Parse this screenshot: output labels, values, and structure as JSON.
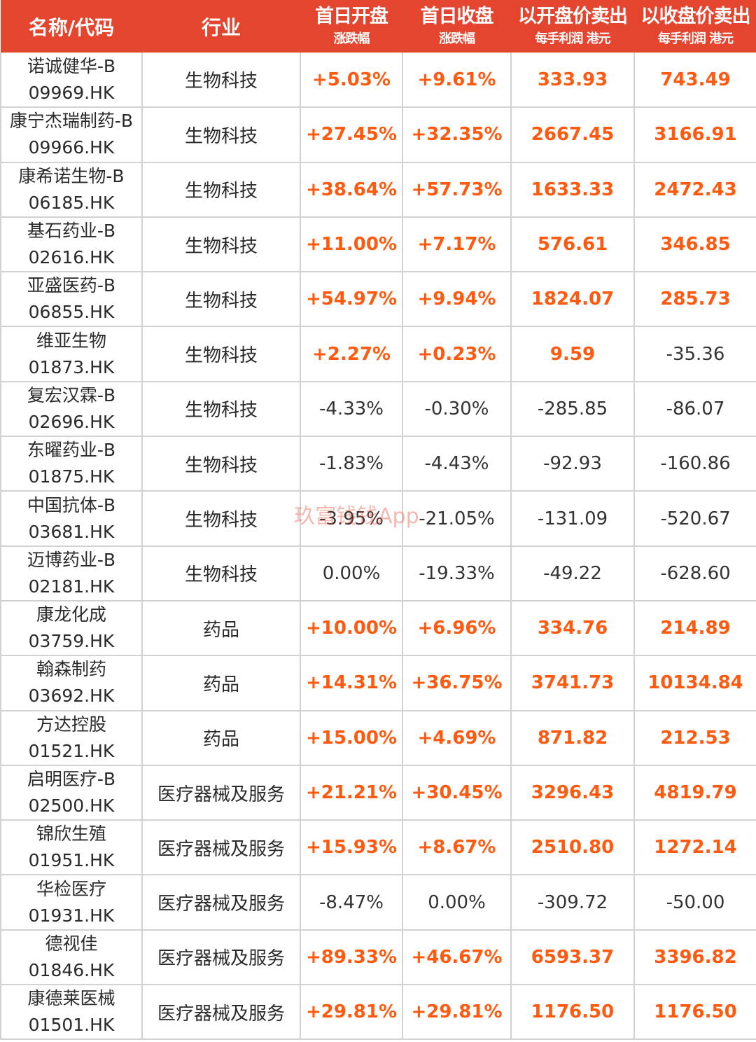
{
  "header": {
    "name_code": "名称/代码",
    "industry": "行业",
    "open": {
      "title": "首日开盘",
      "sub": "涨跌幅"
    },
    "close": {
      "title": "首日收盘",
      "sub": "涨跌幅"
    },
    "sell_open": {
      "title": "以开盘价卖出",
      "sub": "每手利润 港元"
    },
    "sell_close": {
      "title": "以收盘价卖出",
      "sub": "每手利润 港元"
    }
  },
  "watermark": "玖富钱钱App",
  "colors": {
    "header_bg": "#e3452f",
    "positive": "#ff5a10",
    "neutral": "#333333"
  },
  "rows": [
    {
      "name": "诺诚健华-B",
      "code": "09969.HK",
      "industry": "生物科技",
      "open_change": "+5.03%",
      "close_change": "+9.61%",
      "profit_open": "333.93",
      "profit_close": "743.49"
    },
    {
      "name": "康宁杰瑞制药-B",
      "code": "09966.HK",
      "industry": "生物科技",
      "open_change": "+27.45%",
      "close_change": "+32.35%",
      "profit_open": "2667.45",
      "profit_close": "3166.91"
    },
    {
      "name": "康希诺生物-B",
      "code": "06185.HK",
      "industry": "生物科技",
      "open_change": "+38.64%",
      "close_change": "+57.73%",
      "profit_open": "1633.33",
      "profit_close": "2472.43"
    },
    {
      "name": "基石药业-B",
      "code": "02616.HK",
      "industry": "生物科技",
      "open_change": "+11.00%",
      "close_change": "+7.17%",
      "profit_open": "576.61",
      "profit_close": "346.85"
    },
    {
      "name": "亚盛医药-B",
      "code": "06855.HK",
      "industry": "生物科技",
      "open_change": "+54.97%",
      "close_change": "+9.94%",
      "profit_open": "1824.07",
      "profit_close": "285.73"
    },
    {
      "name": "维亚生物",
      "code": "01873.HK",
      "industry": "生物科技",
      "open_change": "+2.27%",
      "close_change": "+0.23%",
      "profit_open": "9.59",
      "profit_close": "-35.36"
    },
    {
      "name": "复宏汉霖-B",
      "code": "02696.HK",
      "industry": "生物科技",
      "open_change": "-4.33%",
      "close_change": "-0.30%",
      "profit_open": "-285.85",
      "profit_close": "-86.07"
    },
    {
      "name": "东曜药业-B",
      "code": "01875.HK",
      "industry": "生物科技",
      "open_change": "-1.83%",
      "close_change": "-4.43%",
      "profit_open": "-92.93",
      "profit_close": "-160.86"
    },
    {
      "name": "中国抗体-B",
      "code": "03681.HK",
      "industry": "生物科技",
      "open_change": "-3.95%",
      "close_change": "-21.05%",
      "profit_open": "-131.09",
      "profit_close": "-520.67"
    },
    {
      "name": "迈博药业-B",
      "code": "02181.HK",
      "industry": "生物科技",
      "open_change": "0.00%",
      "close_change": "-19.33%",
      "profit_open": "-49.22",
      "profit_close": "-628.60"
    },
    {
      "name": "康龙化成",
      "code": "03759.HK",
      "industry": "药品",
      "open_change": "+10.00%",
      "close_change": "+6.96%",
      "profit_open": "334.76",
      "profit_close": "214.89"
    },
    {
      "name": "翰森制药",
      "code": "03692.HK",
      "industry": "药品",
      "open_change": "+14.31%",
      "close_change": "+36.75%",
      "profit_open": "3741.73",
      "profit_close": "10134.84"
    },
    {
      "name": "方达控股",
      "code": "01521.HK",
      "industry": "药品",
      "open_change": "+15.00%",
      "close_change": "+4.69%",
      "profit_open": "871.82",
      "profit_close": "212.53"
    },
    {
      "name": "启明医疗-B",
      "code": "02500.HK",
      "industry": "医疗器械及服务",
      "open_change": "+21.21%",
      "close_change": "+30.45%",
      "profit_open": "3296.43",
      "profit_close": "4819.79"
    },
    {
      "name": "锦欣生殖",
      "code": "01951.HK",
      "industry": "医疗器械及服务",
      "open_change": "+15.93%",
      "close_change": "+8.67%",
      "profit_open": "2510.80",
      "profit_close": "1272.14"
    },
    {
      "name": "华检医疗",
      "code": "01931.HK",
      "industry": "医疗器械及服务",
      "open_change": "-8.47%",
      "close_change": "0.00%",
      "profit_open": "-309.72",
      "profit_close": "-50.00"
    },
    {
      "name": "德视佳",
      "code": "01846.HK",
      "industry": "医疗器械及服务",
      "open_change": "+89.33%",
      "close_change": "+46.67%",
      "profit_open": "6593.37",
      "profit_close": "3396.82"
    },
    {
      "name": "康德莱医械",
      "code": "01501.HK",
      "industry": "医疗器械及服务",
      "open_change": "+29.81%",
      "close_change": "+29.81%",
      "profit_open": "1176.50",
      "profit_close": "1176.50"
    }
  ]
}
